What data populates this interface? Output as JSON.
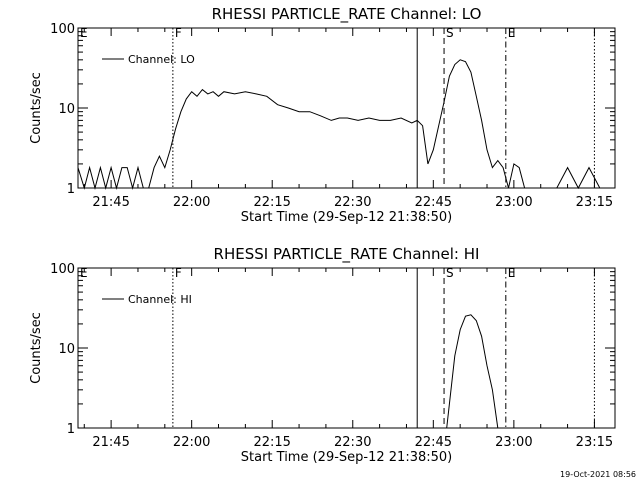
{
  "timestamp": "19-Oct-2021 08:56",
  "chart_data": [
    {
      "type": "line",
      "title": "RHESSI PARTICLE_RATE Channel: LO",
      "xlabel": "Start Time (29-Sep-12 21:38:50)",
      "ylabel": "Counts/sec",
      "yscale": "log",
      "ylim": [
        1,
        100
      ],
      "xlim": [
        "21:38:50",
        "23:18:50"
      ],
      "ytick_labels": [
        "1",
        "10",
        "100"
      ],
      "xtick_labels": [
        "21:45",
        "22:00",
        "22:15",
        "22:30",
        "22:45",
        "23:00",
        "23:15"
      ],
      "legend": "Channel: LO",
      "legend_position": "top-left",
      "markers": [
        {
          "label": "E",
          "time": "21:38:50",
          "style": "none"
        },
        {
          "label": "F",
          "time": "21:56:30",
          "style": "dotted"
        },
        {
          "label": "",
          "time": "22:42:00",
          "style": "solid"
        },
        {
          "label": "S",
          "time": "22:47:00",
          "style": "dashed"
        },
        {
          "label": "E",
          "time": "22:58:30",
          "style": "dashdot"
        },
        {
          "label": "",
          "time": "23:15:00",
          "style": "dotted"
        }
      ],
      "series": [
        {
          "name": "Channel: LO",
          "x": [
            "21:38:50",
            "21:40:00",
            "21:41:00",
            "21:42:00",
            "21:43:00",
            "21:44:00",
            "21:45:00",
            "21:46:00",
            "21:47:00",
            "21:48:00",
            "21:49:00",
            "21:50:00",
            "21:51:00",
            "21:52:00",
            "21:53:00",
            "21:54:00",
            "21:55:00",
            "21:56:00",
            "21:57:00",
            "21:58:00",
            "21:59:00",
            "22:00:00",
            "22:01:00",
            "22:02:00",
            "22:03:00",
            "22:04:00",
            "22:05:00",
            "22:06:00",
            "22:08:00",
            "22:10:00",
            "22:12:00",
            "22:14:00",
            "22:16:00",
            "22:18:00",
            "22:20:00",
            "22:22:00",
            "22:24:00",
            "22:26:00",
            "22:27:30",
            "22:29:00",
            "22:31:00",
            "22:33:00",
            "22:35:00",
            "22:37:00",
            "22:39:00",
            "22:41:00",
            "22:42:00",
            "22:43:00",
            "22:44:00",
            "22:45:00",
            "22:46:00",
            "22:47:00",
            "22:48:00",
            "22:49:00",
            "22:50:00",
            "22:51:00",
            "22:52:00",
            "22:53:00",
            "22:54:00",
            "22:55:00",
            "22:56:00",
            "22:57:00",
            "22:58:00",
            "22:59:00",
            "23:00:00",
            "23:01:00",
            "23:02:00",
            "23:04:00",
            "23:06:00",
            "23:08:00",
            "23:10:00",
            "23:12:00",
            "23:14:00",
            "23:16:00",
            "23:18:50"
          ],
          "values": [
            1.8,
            1,
            1.8,
            1,
            1.8,
            1,
            1.8,
            1,
            1.8,
            1.8,
            1,
            1.8,
            1,
            1,
            1.8,
            2.5,
            1.8,
            3,
            5.5,
            9,
            13,
            16,
            14,
            17,
            15,
            16,
            14,
            16,
            15,
            16,
            15,
            14,
            11,
            10,
            9,
            9,
            8,
            7,
            7.5,
            7.5,
            7,
            7.5,
            7,
            7,
            7.5,
            6.5,
            7,
            6,
            2,
            3,
            6,
            12,
            25,
            35,
            40,
            38,
            28,
            14,
            7,
            3,
            1.8,
            2.2,
            1.8,
            1,
            2,
            1.8,
            1,
            1,
            1,
            1,
            1.8,
            1,
            1.8,
            1,
            1
          ]
        }
      ]
    },
    {
      "type": "line",
      "title": "RHESSI PARTICLE_RATE Channel: HI",
      "xlabel": "Start Time (29-Sep-12 21:38:50)",
      "ylabel": "Counts/sec",
      "yscale": "log",
      "ylim": [
        1,
        100
      ],
      "xlim": [
        "21:38:50",
        "23:18:50"
      ],
      "ytick_labels": [
        "1",
        "10",
        "100"
      ],
      "xtick_labels": [
        "21:45",
        "22:00",
        "22:15",
        "22:30",
        "22:45",
        "23:00",
        "23:15"
      ],
      "legend": "Channel: HI",
      "legend_position": "top-left",
      "markers": [
        {
          "label": "E",
          "time": "21:38:50",
          "style": "none"
        },
        {
          "label": "F",
          "time": "21:56:30",
          "style": "dotted"
        },
        {
          "label": "",
          "time": "22:42:00",
          "style": "solid"
        },
        {
          "label": "S",
          "time": "22:47:00",
          "style": "dashed"
        },
        {
          "label": "E",
          "time": "22:58:30",
          "style": "dashdot"
        },
        {
          "label": "",
          "time": "23:15:00",
          "style": "dotted"
        }
      ],
      "series": [
        {
          "name": "Channel: HI",
          "x": [
            "22:47:30",
            "22:48:00",
            "22:49:00",
            "22:50:00",
            "22:51:00",
            "22:52:00",
            "22:53:00",
            "22:54:00",
            "22:55:00",
            "22:56:00",
            "22:57:00"
          ],
          "values": [
            1,
            2,
            8,
            17,
            25,
            26,
            22,
            14,
            6,
            3,
            1
          ]
        }
      ]
    }
  ]
}
